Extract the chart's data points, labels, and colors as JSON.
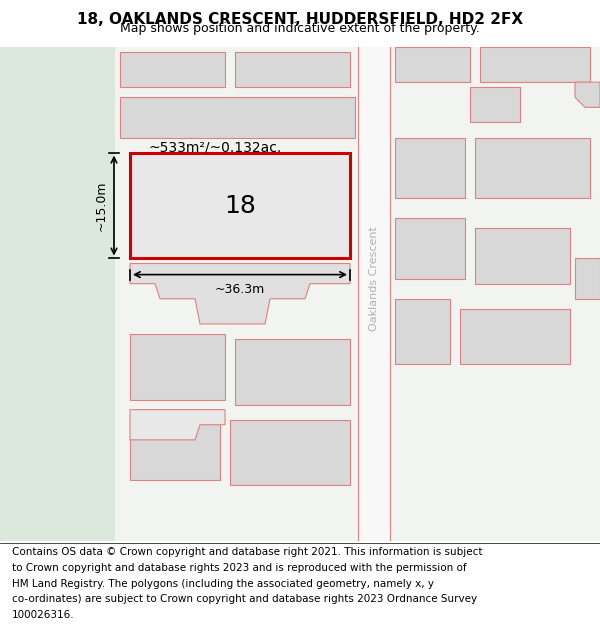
{
  "title_line1": "18, OAKLANDS CRESCENT, HUDDERSFIELD, HD2 2FX",
  "title_line2": "Map shows position and indicative extent of the property.",
  "road_outline_color": "#e08080",
  "subject_fill": "#e8e8e8",
  "subject_outline": "#cc0000",
  "road_label": "Oaklands Crescent",
  "property_label": "18",
  "area_label": "~533m²/~0.132ac.",
  "width_label": "~36.3m",
  "height_label": "~15.0m",
  "title_fontsize": 11,
  "subtitle_fontsize": 9,
  "footer_fontsize": 7.5,
  "footer_lines": [
    "Contains OS data © Crown copyright and database right 2021. This information is subject",
    "to Crown copyright and database rights 2023 and is reproduced with the permission of",
    "HM Land Registry. The polygons (including the associated geometry, namely x, y",
    "co-ordinates) are subject to Crown copyright and database rights 2023 Ordnance Survey",
    "100026316."
  ]
}
